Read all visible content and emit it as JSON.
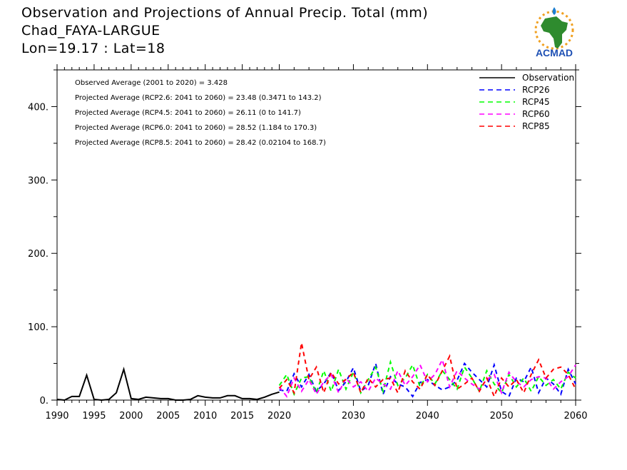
{
  "header": {
    "title_line1": "Observation and Projections of Annual Precip. Total (mm)",
    "title_line2": "Chad_FAYA-LARGUE",
    "title_line3": "Lon=19.17 : Lat=18"
  },
  "logo": {
    "text": "ACMAD",
    "name": "acmad-logo"
  },
  "chart_data": {
    "type": "line",
    "xlim": [
      1990,
      2060
    ],
    "ylim": [
      0,
      450
    ],
    "x_ticks": [
      1990,
      1995,
      2000,
      2005,
      2010,
      2015,
      2020,
      2030,
      2040,
      2050,
      2060
    ],
    "y_ticks": [
      0,
      100,
      200,
      300,
      400
    ],
    "x_tick_labels": [
      "1990",
      "1995",
      "2000",
      "2005",
      "2010",
      "2015",
      "2020",
      "2030",
      "2040",
      "2050",
      "2060"
    ],
    "y_tick_labels": [
      "0.",
      "100.",
      "200.",
      "300.",
      "400."
    ],
    "annotations": [
      "Observed Average (2001 to 2020) = 3.428",
      "Projected Average (RCP2.6: 2041 to 2060) = 23.48 (0.3471 to 143.2)",
      "Projected Average (RCP4.5: 2041 to 2060) = 26.11 (0 to 141.7)",
      "Projected Average (RCP6.0: 2041 to 2060) = 28.52 (1.184 to 170.3)",
      "Projected Average (RCP8.5: 2041 to 2060) = 28.42 (0.02104 to 168.7)"
    ],
    "legend_position": "top-right",
    "series": [
      {
        "name": "Observation",
        "color": "#000000",
        "dash": "solid",
        "x": [
          1990,
          1991,
          1992,
          1993,
          1994,
          1995,
          1996,
          1997,
          1998,
          1999,
          2000,
          2001,
          2002,
          2003,
          2004,
          2005,
          2006,
          2007,
          2008,
          2009,
          2010,
          2011,
          2012,
          2013,
          2014,
          2015,
          2016,
          2017,
          2018,
          2019,
          2020
        ],
        "values": [
          1,
          0,
          5,
          5,
          34,
          1,
          0,
          1,
          10,
          42,
          2,
          1,
          4,
          3,
          2,
          2,
          0,
          0,
          1,
          6,
          4,
          3,
          3,
          6,
          6,
          2,
          2,
          1,
          4,
          8,
          11
        ]
      },
      {
        "name": "RCP26",
        "color": "#0000ff",
        "dash": "dashed",
        "x": [
          2020,
          2021,
          2022,
          2023,
          2024,
          2025,
          2026,
          2027,
          2028,
          2029,
          2030,
          2031,
          2032,
          2033,
          2034,
          2035,
          2036,
          2037,
          2038,
          2039,
          2040,
          2041,
          2042,
          2043,
          2044,
          2045,
          2046,
          2047,
          2048,
          2049,
          2050,
          2051,
          2052,
          2053,
          2054,
          2055,
          2056,
          2057,
          2058,
          2059,
          2060
        ],
        "values": [
          14,
          12,
          36,
          18,
          35,
          12,
          22,
          38,
          13,
          25,
          44,
          12,
          20,
          50,
          8,
          32,
          22,
          18,
          5,
          24,
          28,
          20,
          14,
          18,
          27,
          50,
          38,
          28,
          18,
          48,
          12,
          5,
          30,
          25,
          45,
          10,
          30,
          22,
          8,
          42,
          22
        ]
      },
      {
        "name": "RCP45",
        "color": "#00ff00",
        "dash": "dashed",
        "x": [
          2020,
          2021,
          2022,
          2023,
          2024,
          2025,
          2026,
          2027,
          2028,
          2029,
          2030,
          2031,
          2032,
          2033,
          2034,
          2035,
          2036,
          2037,
          2038,
          2039,
          2040,
          2041,
          2042,
          2043,
          2044,
          2045,
          2046,
          2047,
          2048,
          2049,
          2050,
          2051,
          2052,
          2053,
          2054,
          2055,
          2056,
          2057,
          2058,
          2059,
          2060
        ],
        "values": [
          20,
          35,
          8,
          30,
          32,
          10,
          40,
          12,
          42,
          15,
          38,
          10,
          28,
          45,
          12,
          52,
          20,
          30,
          48,
          18,
          35,
          22,
          40,
          28,
          15,
          45,
          30,
          12,
          40,
          22,
          10,
          35,
          18,
          30,
          12,
          32,
          20,
          28,
          15,
          38,
          30
        ]
      },
      {
        "name": "RCP60",
        "color": "#ff00ff",
        "dash": "dashed",
        "x": [
          2020,
          2021,
          2022,
          2023,
          2024,
          2025,
          2026,
          2027,
          2028,
          2029,
          2030,
          2031,
          2032,
          2033,
          2034,
          2035,
          2036,
          2037,
          2038,
          2039,
          2040,
          2041,
          2042,
          2043,
          2044,
          2045,
          2046,
          2047,
          2048,
          2049,
          2050,
          2051,
          2052,
          2053,
          2054,
          2055,
          2056,
          2057,
          2058,
          2059,
          2060
        ],
        "values": [
          18,
          5,
          30,
          12,
          28,
          8,
          25,
          35,
          10,
          30,
          18,
          25,
          12,
          30,
          22,
          15,
          40,
          20,
          32,
          48,
          25,
          35,
          55,
          18,
          40,
          30,
          22,
          15,
          28,
          35,
          10,
          38,
          25,
          18,
          28,
          32,
          30,
          15,
          25,
          32,
          48
        ]
      },
      {
        "name": "RCP85",
        "color": "#ff0000",
        "dash": "dashed",
        "x": [
          2020,
          2021,
          2022,
          2023,
          2024,
          2025,
          2026,
          2027,
          2028,
          2029,
          2030,
          2031,
          2032,
          2033,
          2034,
          2035,
          2036,
          2037,
          2038,
          2039,
          2040,
          2041,
          2042,
          2043,
          2044,
          2045,
          2046,
          2047,
          2048,
          2049,
          2050,
          2051,
          2052,
          2053,
          2054,
          2055,
          2056,
          2057,
          2058,
          2059,
          2060
        ],
        "values": [
          16,
          28,
          10,
          78,
          28,
          45,
          10,
          38,
          22,
          28,
          38,
          10,
          30,
          18,
          28,
          30,
          10,
          40,
          25,
          15,
          35,
          20,
          40,
          60,
          15,
          22,
          30,
          12,
          30,
          5,
          30,
          18,
          28,
          10,
          35,
          55,
          30,
          42,
          45,
          35,
          15
        ]
      }
    ]
  },
  "colors": {
    "axis": "#000000",
    "background": "#ffffff"
  }
}
